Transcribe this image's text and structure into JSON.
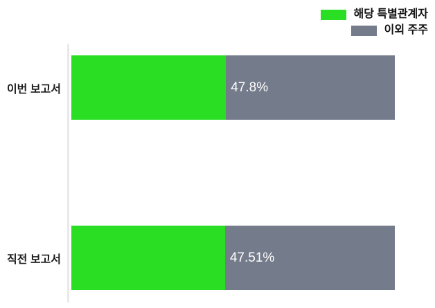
{
  "chart_data": {
    "type": "bar",
    "orientation": "horizontal",
    "stacked": true,
    "title": "",
    "xlabel": "",
    "ylabel": "",
    "categories": [
      "이번 보고서",
      "직전 보고서"
    ],
    "series": [
      {
        "name": "해당 특별관계자",
        "color": "#2ade24",
        "values": [
          47.8,
          47.51
        ]
      },
      {
        "name": "이외 주주",
        "color": "#747b8a",
        "values": [
          52.2,
          52.49
        ]
      }
    ],
    "value_labels": [
      "47.8%",
      "47.51%"
    ],
    "xlim": [
      0,
      100
    ],
    "grid": false,
    "legend_position": "top-right",
    "axis_color": "#e9e9e9",
    "value_label_color": "#ffffff"
  }
}
